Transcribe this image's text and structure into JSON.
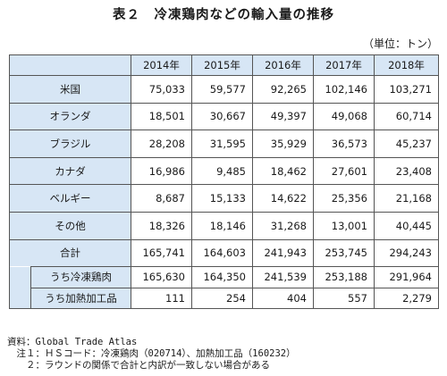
{
  "title": "表２　冷凍鶏肉などの輸入量の推移",
  "unit": "（単位：トン）",
  "columns": [
    "2014年",
    "2015年",
    "2016年",
    "2017年",
    "2018年"
  ],
  "rows": [
    {
      "label": "米国",
      "values": [
        "75,033",
        "59,577",
        "92,265",
        "102,146",
        "103,271"
      ]
    },
    {
      "label": "オランダ",
      "values": [
        "18,501",
        "30,667",
        "49,397",
        "49,068",
        "60,714"
      ]
    },
    {
      "label": "ブラジル",
      "values": [
        "28,208",
        "31,595",
        "35,929",
        "36,573",
        "45,237"
      ]
    },
    {
      "label": "カナダ",
      "values": [
        "16,986",
        "9,485",
        "18,462",
        "27,601",
        "23,408"
      ]
    },
    {
      "label": "ベルギー",
      "values": [
        "8,687",
        "15,133",
        "14,622",
        "25,356",
        "21,168"
      ]
    },
    {
      "label": "その他",
      "values": [
        "18,326",
        "18,146",
        "31,268",
        "13,001",
        "40,445"
      ]
    },
    {
      "label": "合計",
      "values": [
        "165,741",
        "164,603",
        "241,943",
        "253,745",
        "294,243"
      ]
    }
  ],
  "subrows": [
    {
      "label": "うち冷凍鶏肉",
      "values": [
        "165,630",
        "164,350",
        "241,539",
        "253,188",
        "291,964"
      ]
    },
    {
      "label": "うち加熱加工品",
      "values": [
        "111",
        "254",
        "404",
        "557",
        "2,279"
      ]
    }
  ],
  "notes": [
    "資料：Global Trade Atlas",
    "　注１：ＨＳコード：冷凍鶏肉（020714）、加熱加工品（160232）",
    "　　２：ラウンドの関係で合計と内訳が一致しない場合がある"
  ]
}
